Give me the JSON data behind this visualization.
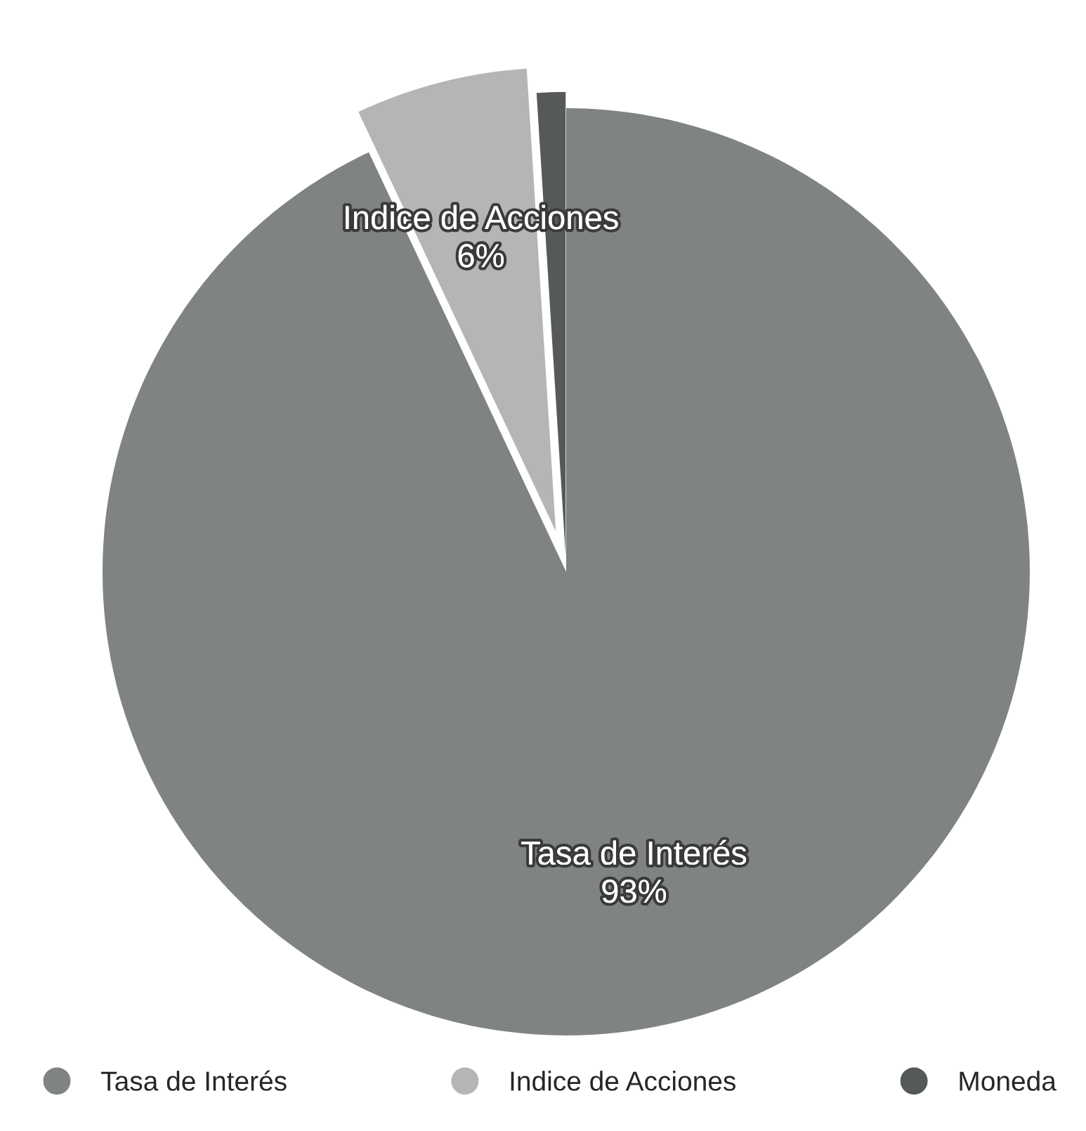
{
  "chart_data": {
    "type": "pie",
    "categories": [
      "Tasa de Interés",
      "Indice de Acciones",
      "Moneda"
    ],
    "values": [
      93,
      6,
      1
    ],
    "colors": [
      "#7f8480",
      "#b5b5b5",
      "#555a58"
    ],
    "value_labels": [
      "93%",
      "6%",
      null
    ],
    "legend": "bottom"
  }
}
